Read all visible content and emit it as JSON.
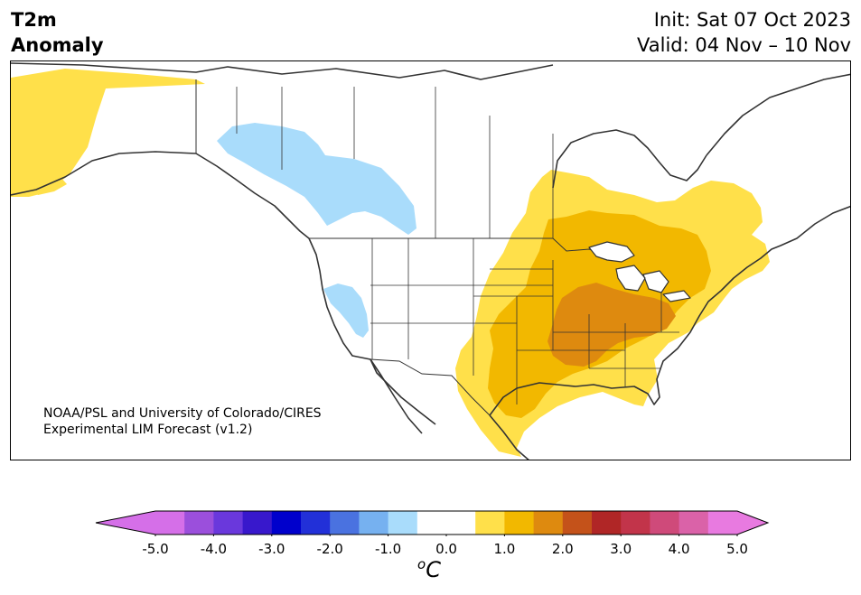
{
  "title": {
    "left_line1": "T2m",
    "left_line2": "Anomaly",
    "right_line1": "Init: Sat 07 Oct 2023",
    "right_line2": "Valid: 04 Nov – 10 Nov"
  },
  "credit": {
    "line1": "NOAA/PSL and University of Colorado/CIRES",
    "line2": "Experimental LIM Forecast (v1.2)"
  },
  "colorbar": {
    "unit_base": "C",
    "unit_sup": "o",
    "ticks": [
      "-5.0",
      "-4.0",
      "-3.0",
      "-2.0",
      "-1.0",
      "0.0",
      "1.0",
      "2.0",
      "3.0",
      "4.0",
      "5.0"
    ],
    "colors": [
      "#d56fe8",
      "#9b4fdc",
      "#6a38dc",
      "#3818cc",
      "#0000cc",
      "#2230d8",
      "#4a72e0",
      "#76b1f0",
      "#a9dcfb",
      "#ffffff",
      "#ffffff",
      "#ffe04a",
      "#f2b800",
      "#de8a0f",
      "#c4521a",
      "#b02626",
      "#c2344a",
      "#cf4a7a",
      "#da62a8",
      "#e87ae0"
    ],
    "under_color": "#d56fe8",
    "over_color": "#e87ae0"
  },
  "map": {
    "region": "North America",
    "anomaly_colors": {
      "light_blue": "#a9dcfb",
      "yellow": "#ffe04a",
      "gold": "#f2b800",
      "orange": "#de8a0f"
    },
    "coastline_color": "#333333"
  }
}
